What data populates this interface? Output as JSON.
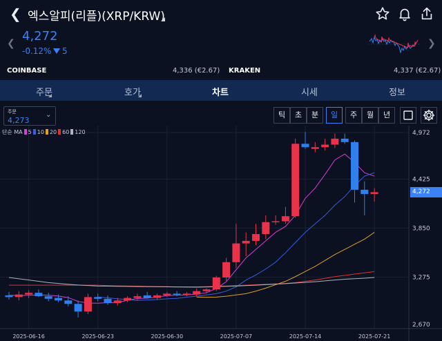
{
  "header": {
    "title": "엑스알피(리플)(XRP/KRW)",
    "icons": [
      "back-icon",
      "star-icon",
      "bell-icon",
      "share-icon"
    ]
  },
  "quote": {
    "price": "4,272",
    "change_pct": "-0.12%",
    "change_val": "5",
    "color": "#3b82f6"
  },
  "exchanges": {
    "left_name": "COINBASE",
    "left_value": "4,336 (€2.67)",
    "right_name": "KRAKEN",
    "right_value": "4,337 (€2.67)"
  },
  "tabs": [
    {
      "label": "주문"
    },
    {
      "label": "호가"
    },
    {
      "label": "차트"
    },
    {
      "label": "시세"
    },
    {
      "label": "정보"
    }
  ],
  "toolbar": {
    "order_label": "주문",
    "order_value": "4,273",
    "periods": [
      "틱",
      "초",
      "분",
      "일",
      "주",
      "월",
      "년"
    ],
    "active_period": "일"
  },
  "legend": {
    "prefix": "단순 MA",
    "items": [
      {
        "label": "5",
        "color": "#d63fd6"
      },
      {
        "label": "10",
        "color": "#3b5bdb"
      },
      {
        "label": "20",
        "color": "#e0a020"
      },
      {
        "label": "60",
        "color": "#e03131"
      },
      {
        "label": "120",
        "color": "#adb5bd"
      }
    ]
  },
  "chart_data": {
    "type": "candlestick",
    "up_color": "#e8334a",
    "down_color": "#2f80ed",
    "y_ticks": [
      "4,972",
      "4,425",
      "3,850",
      "3,275",
      "2,670"
    ],
    "x_ticks": [
      "2025-06-16",
      "2025-06-23",
      "2025-06-30",
      "2025-07-07",
      "2025-07-14",
      "2025-07-21"
    ],
    "ylim": [
      2670,
      4972
    ],
    "current_price_label": "4,272",
    "candles": [
      {
        "o": 3060,
        "h": 3100,
        "l": 3010,
        "c": 3040
      },
      {
        "o": 3040,
        "h": 3110,
        "l": 3000,
        "c": 3070
      },
      {
        "o": 3070,
        "h": 3120,
        "l": 3030,
        "c": 3090
      },
      {
        "o": 3090,
        "h": 3130,
        "l": 3040,
        "c": 3050
      },
      {
        "o": 3050,
        "h": 3090,
        "l": 2990,
        "c": 3020
      },
      {
        "o": 3030,
        "h": 3070,
        "l": 2980,
        "c": 3000
      },
      {
        "o": 3000,
        "h": 3050,
        "l": 2930,
        "c": 2960
      },
      {
        "o": 2960,
        "h": 3000,
        "l": 2800,
        "c": 2870
      },
      {
        "o": 2870,
        "h": 3080,
        "l": 2840,
        "c": 3040
      },
      {
        "o": 3040,
        "h": 3080,
        "l": 2990,
        "c": 3020
      },
      {
        "o": 3020,
        "h": 3060,
        "l": 2950,
        "c": 2970
      },
      {
        "o": 2970,
        "h": 3030,
        "l": 2940,
        "c": 3000
      },
      {
        "o": 3000,
        "h": 3050,
        "l": 2980,
        "c": 3030
      },
      {
        "o": 3030,
        "h": 3080,
        "l": 3000,
        "c": 3050
      },
      {
        "o": 3060,
        "h": 3100,
        "l": 3020,
        "c": 3030
      },
      {
        "o": 3030,
        "h": 3080,
        "l": 3010,
        "c": 3060
      },
      {
        "o": 3060,
        "h": 3100,
        "l": 3040,
        "c": 3080
      },
      {
        "o": 3080,
        "h": 3110,
        "l": 3050,
        "c": 3070
      },
      {
        "o": 3070,
        "h": 3100,
        "l": 3050,
        "c": 3080
      },
      {
        "o": 3070,
        "h": 3140,
        "l": 3050,
        "c": 3110
      },
      {
        "o": 3110,
        "h": 3140,
        "l": 3080,
        "c": 3130
      },
      {
        "o": 3130,
        "h": 3290,
        "l": 3110,
        "c": 3270
      },
      {
        "o": 3270,
        "h": 3500,
        "l": 3230,
        "c": 3450
      },
      {
        "o": 3450,
        "h": 3900,
        "l": 3380,
        "c": 3670
      },
      {
        "o": 3670,
        "h": 3800,
        "l": 3520,
        "c": 3700
      },
      {
        "o": 3700,
        "h": 3900,
        "l": 3650,
        "c": 3780
      },
      {
        "o": 3780,
        "h": 4000,
        "l": 3720,
        "c": 3920
      },
      {
        "o": 3930,
        "h": 4000,
        "l": 3890,
        "c": 3930
      },
      {
        "o": 3930,
        "h": 4100,
        "l": 3900,
        "c": 3990
      },
      {
        "o": 3990,
        "h": 4900,
        "l": 3970,
        "c": 4840
      },
      {
        "o": 4840,
        "h": 4980,
        "l": 4780,
        "c": 4800
      },
      {
        "o": 4780,
        "h": 4860,
        "l": 4740,
        "c": 4800
      },
      {
        "o": 4800,
        "h": 4900,
        "l": 4760,
        "c": 4830
      },
      {
        "o": 4830,
        "h": 4960,
        "l": 4790,
        "c": 4900
      },
      {
        "o": 4900,
        "h": 4960,
        "l": 4840,
        "c": 4860
      },
      {
        "o": 4860,
        "h": 4880,
        "l": 4150,
        "c": 4300
      },
      {
        "o": 4300,
        "h": 4400,
        "l": 4000,
        "c": 4250
      },
      {
        "o": 4250,
        "h": 4320,
        "l": 4160,
        "c": 4272
      }
    ],
    "ma_lines": [
      {
        "name": "5",
        "values": [
          3060,
          3060,
          3060,
          3065,
          3062,
          3052,
          3034,
          2988,
          2970,
          2968,
          2974,
          2976,
          3002,
          3024,
          3028,
          3040,
          3058,
          3062,
          3066,
          3074,
          3092,
          3140,
          3220,
          3360,
          3500,
          3600,
          3700,
          3800,
          3870,
          4000,
          4200,
          4320,
          4480,
          4650,
          4720,
          4620,
          4500,
          4460
        ]
      },
      {
        "name": "10",
        "values": [
          null,
          null,
          null,
          null,
          null,
          null,
          null,
          null,
          null,
          3040,
          3032,
          3020,
          3010,
          3000,
          3006,
          3010,
          3020,
          3025,
          3040,
          3050,
          3065,
          3080,
          3110,
          3160,
          3240,
          3300,
          3370,
          3450,
          3560,
          3680,
          3800,
          3900,
          4000,
          4120,
          4220,
          4350,
          4460,
          4500
        ]
      },
      {
        "name": "20",
        "values": [
          null,
          null,
          null,
          null,
          null,
          null,
          null,
          null,
          null,
          null,
          null,
          null,
          null,
          null,
          null,
          null,
          null,
          null,
          null,
          3040,
          3038,
          3040,
          3050,
          3065,
          3080,
          3110,
          3145,
          3185,
          3225,
          3280,
          3340,
          3400,
          3470,
          3540,
          3600,
          3660,
          3720,
          3800
        ]
      },
      {
        "name": "60",
        "values": [
          3180,
          3180,
          3180,
          3180,
          3180,
          3180,
          3180,
          3180,
          3180,
          3180,
          3175,
          3172,
          3170,
          3168,
          3165,
          3163,
          3162,
          3160,
          3160,
          3160,
          3162,
          3165,
          3170,
          3175,
          3180,
          3185,
          3190,
          3195,
          3200,
          3210,
          3225,
          3240,
          3260,
          3280,
          3295,
          3310,
          3325,
          3340
        ]
      },
      {
        "name": "120",
        "values": [
          3270,
          3255,
          3240,
          3225,
          3210,
          3200,
          3190,
          3182,
          3176,
          3170,
          3168,
          3166,
          3165,
          3163,
          3162,
          3161,
          3160,
          3158,
          3157,
          3156,
          3158,
          3162,
          3166,
          3170,
          3175,
          3180,
          3186,
          3192,
          3198,
          3205,
          3212,
          3220,
          3230,
          3240,
          3250,
          3256,
          3262,
          3270
        ]
      }
    ]
  }
}
